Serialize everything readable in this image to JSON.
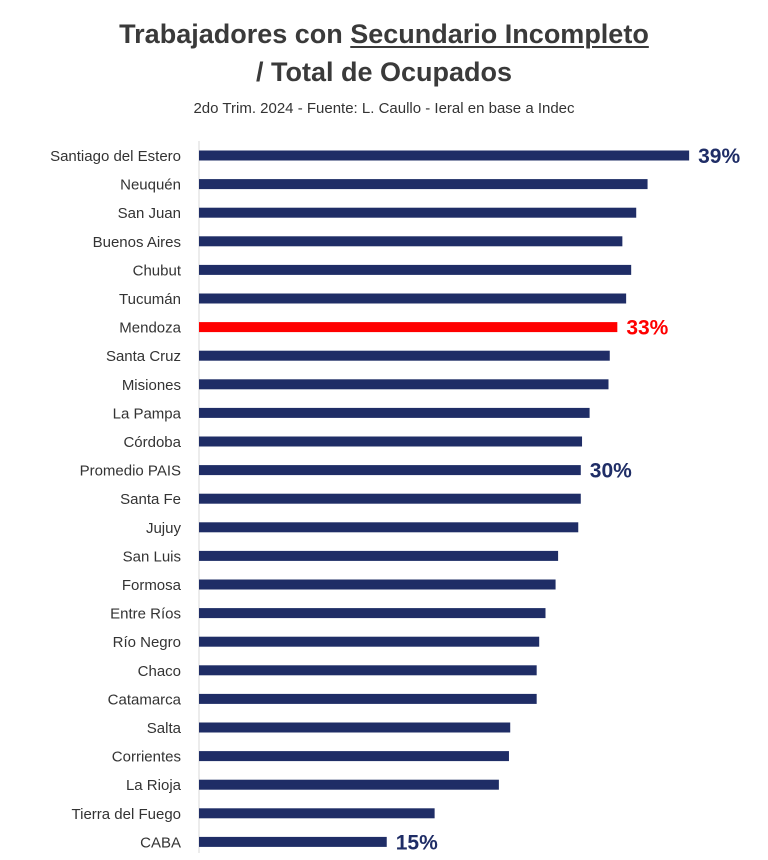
{
  "title_part1": "Trabajadores con ",
  "title_underlined": "Secundario Incompleto",
  "title_line2": "/ Total de Ocupados",
  "subtitle": "2do Trim. 2024 - Fuente: L. Caullo - Ieral en base a Indec",
  "colors": {
    "bar": "#1f2d66",
    "highlight": "#ff0000",
    "label_text": "#333333"
  },
  "chart_data": {
    "type": "bar",
    "orientation": "horizontal",
    "title": "Trabajadores con Secundario Incompleto / Total de Ocupados",
    "subtitle": "2do Trim. 2024 - Fuente: L. Caullo - Ieral en base a Indec",
    "unit": "%",
    "xlim": [
      0,
      40
    ],
    "grid": false,
    "categories": [
      "Santiago del Estero",
      "Neuquén",
      "San Juan",
      "Buenos Aires",
      "Chubut",
      "Tucumán",
      "Mendoza",
      "Santa Cruz",
      "Misiones",
      "La Pampa",
      "Córdoba",
      "Promedio PAIS",
      "Santa Fe",
      "Jujuy",
      "San Luis",
      "Formosa",
      "Entre Ríos",
      "Río Negro",
      "Chaco",
      "Catamarca",
      "Salta",
      "Corrientes",
      "La Rioja",
      "Tierra del Fuego",
      "CABA"
    ],
    "values": [
      38.9,
      35.6,
      34.7,
      33.6,
      34.3,
      33.9,
      33.2,
      32.6,
      32.5,
      31.0,
      30.4,
      30.3,
      30.3,
      30.1,
      28.5,
      28.3,
      27.5,
      27.0,
      26.8,
      26.8,
      24.7,
      24.6,
      23.8,
      18.7,
      14.9
    ],
    "highlight": "Mendoza",
    "data_labels": [
      {
        "category": "Santiago del Estero",
        "text": "39%"
      },
      {
        "category": "Mendoza",
        "text": "33%"
      },
      {
        "category": "Promedio PAIS",
        "text": "30%"
      },
      {
        "category": "CABA",
        "text": "15%"
      }
    ]
  }
}
